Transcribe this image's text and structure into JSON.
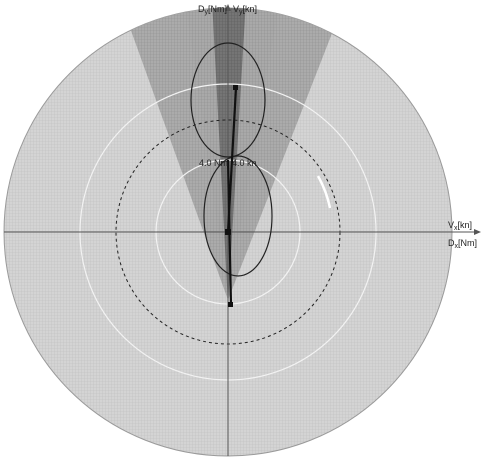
{
  "axes": {
    "y_top_label_d": "D",
    "y_top_label_d_sub": "y",
    "y_top_label_d_unit": "[Nm]",
    "y_top_label_v": "V",
    "y_top_label_v_sub": "y",
    "y_top_label_v_unit": "[kn]",
    "x_right_label_v": "V",
    "x_right_label_v_sub": "x",
    "x_right_label_v_unit": "[kn]",
    "x_right_label_d": "D",
    "x_right_label_d_sub": "x",
    "x_right_label_d_unit": "[Nm]"
  },
  "ring_labels": {
    "distance": "4.0 Nm",
    "speed": "4.0 kn"
  },
  "colors": {
    "background": "#ffffff",
    "disc_fill": "#d2d2d2",
    "sector_fill": "#a8a8a8",
    "inner_dark": "#6a6a6a",
    "line": "#222222",
    "ring": "#f2f2f2"
  }
}
